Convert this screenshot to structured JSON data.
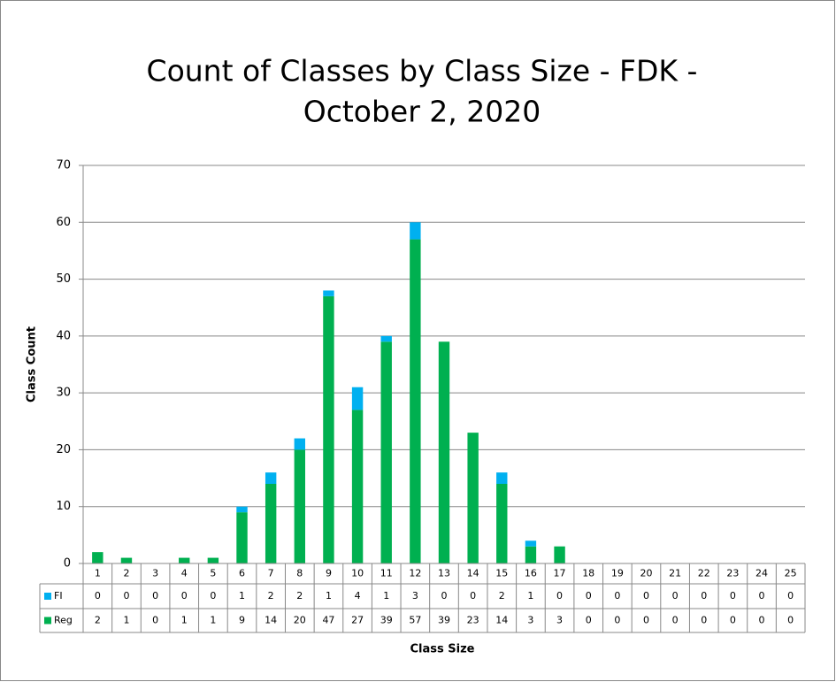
{
  "chart_data": {
    "type": "stacked_bar",
    "title": [
      "Count of Classes by Class Size - FDK -",
      "October 2, 2020"
    ],
    "x_label": "Class Size",
    "y_label": "Class Count",
    "categories": [
      "1",
      "2",
      "3",
      "4",
      "5",
      "6",
      "7",
      "8",
      "9",
      "10",
      "11",
      "12",
      "13",
      "14",
      "15",
      "16",
      "17",
      "18",
      "19",
      "20",
      "21",
      "22",
      "23",
      "24",
      "25"
    ],
    "series": [
      {
        "name": "Reg",
        "color": "#00b050",
        "values": [
          2,
          1,
          0,
          1,
          1,
          9,
          14,
          20,
          47,
          27,
          39,
          57,
          39,
          23,
          14,
          3,
          3,
          0,
          0,
          0,
          0,
          0,
          0,
          0,
          0
        ]
      },
      {
        "name": "FI",
        "color": "#00b0f0",
        "values": [
          0,
          0,
          0,
          0,
          0,
          1,
          2,
          2,
          1,
          4,
          1,
          3,
          0,
          0,
          2,
          1,
          0,
          0,
          0,
          0,
          0,
          0,
          0,
          0,
          0
        ]
      }
    ],
    "ylim": [
      0,
      70
    ],
    "yticks": [
      0,
      10,
      20,
      30,
      40,
      50,
      60,
      70
    ],
    "grid": true
  }
}
